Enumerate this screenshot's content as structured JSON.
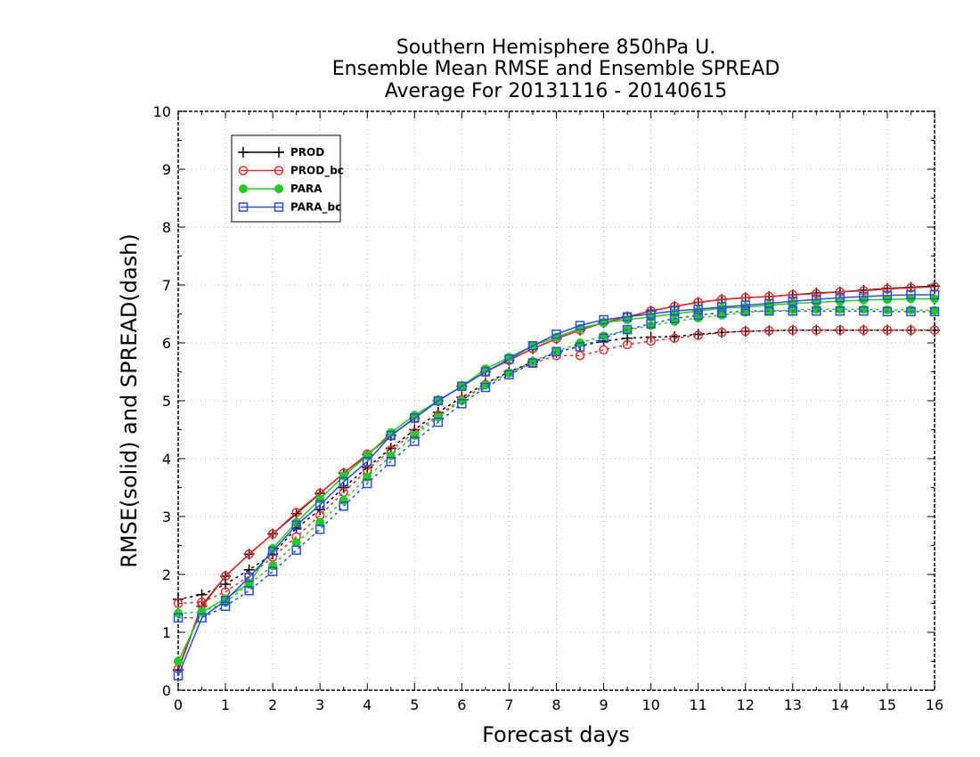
{
  "chart_data": {
    "type": "line",
    "title": "Southern Hemisphere 850hPa U.",
    "subtitle": "Ensemble Mean RMSE and Ensemble SPREAD",
    "subtitle2": "Average For 20131116 - 20140615",
    "xlabel": "Forecast days",
    "ylabel": "RMSE(solid) and SPREAD(dash)",
    "xlim": [
      0,
      16
    ],
    "ylim": [
      0,
      10
    ],
    "xticks": [
      "0",
      "1",
      "2",
      "3",
      "4",
      "5",
      "6",
      "7",
      "8",
      "9",
      "10",
      "11",
      "12",
      "13",
      "14",
      "15",
      "16"
    ],
    "yticks": [
      "0",
      "1",
      "2",
      "3",
      "4",
      "5",
      "6",
      "7",
      "8",
      "9",
      "10"
    ],
    "grid": true,
    "legend_position": "top-left",
    "x": [
      0,
      0.5,
      1,
      1.5,
      2,
      2.5,
      3,
      3.5,
      4,
      4.5,
      5,
      5.5,
      6,
      6.5,
      7,
      7.5,
      8,
      8.5,
      9,
      9.5,
      10,
      10.5,
      11,
      11.5,
      12,
      12.5,
      13,
      13.5,
      14,
      14.5,
      15,
      15.5,
      16
    ],
    "series": [
      {
        "name": "PROD",
        "color": "#000000",
        "marker": "plus",
        "rmse": [
          0.35,
          1.45,
          1.97,
          2.35,
          2.7,
          3.05,
          3.4,
          3.75,
          4.07,
          4.4,
          4.7,
          5.0,
          5.25,
          5.5,
          5.7,
          5.9,
          6.07,
          6.22,
          6.35,
          6.45,
          6.55,
          6.63,
          6.7,
          6.75,
          6.78,
          6.8,
          6.83,
          6.86,
          6.88,
          6.91,
          6.94,
          6.96,
          6.98
        ],
        "spread": [
          1.57,
          1.65,
          1.83,
          2.08,
          2.35,
          2.8,
          3.12,
          3.5,
          3.85,
          4.18,
          4.5,
          4.8,
          5.06,
          5.3,
          5.5,
          5.67,
          5.83,
          5.95,
          6.03,
          6.08,
          6.1,
          6.11,
          6.15,
          6.18,
          6.2,
          6.21,
          6.22,
          6.22,
          6.22,
          6.22,
          6.22,
          6.22,
          6.22
        ]
      },
      {
        "name": "PROD_bc",
        "color": "#e03030",
        "marker": "circle-open",
        "rmse": [
          0.37,
          1.47,
          1.97,
          2.35,
          2.7,
          3.07,
          3.4,
          3.75,
          4.08,
          4.4,
          4.7,
          5.0,
          5.25,
          5.5,
          5.7,
          5.9,
          6.07,
          6.22,
          6.35,
          6.45,
          6.55,
          6.63,
          6.7,
          6.75,
          6.78,
          6.8,
          6.83,
          6.85,
          6.88,
          6.9,
          6.93,
          6.95,
          6.97
        ],
        "spread": [
          1.5,
          1.52,
          1.7,
          1.97,
          2.3,
          2.65,
          3.02,
          3.42,
          3.8,
          4.15,
          4.45,
          4.75,
          5.02,
          5.28,
          5.48,
          5.65,
          5.78,
          5.78,
          5.88,
          5.97,
          6.03,
          6.08,
          6.13,
          6.18,
          6.2,
          6.21,
          6.22,
          6.22,
          6.22,
          6.22,
          6.22,
          6.22,
          6.22
        ]
      },
      {
        "name": "PARA",
        "color": "#22cc22",
        "marker": "circle-filled",
        "rmse": [
          0.5,
          1.35,
          1.58,
          1.85,
          2.45,
          2.9,
          3.3,
          3.7,
          4.05,
          4.45,
          4.75,
          5.0,
          5.25,
          5.55,
          5.75,
          5.95,
          6.1,
          6.25,
          6.35,
          6.4,
          6.45,
          6.5,
          6.55,
          6.6,
          6.62,
          6.65,
          6.68,
          6.7,
          6.72,
          6.74,
          6.75,
          6.76,
          6.76
        ],
        "spread": [
          1.33,
          1.35,
          1.52,
          1.83,
          2.15,
          2.55,
          2.9,
          3.28,
          3.68,
          4.05,
          4.4,
          4.72,
          5.0,
          5.27,
          5.48,
          5.68,
          5.85,
          6.0,
          6.12,
          6.22,
          6.3,
          6.37,
          6.43,
          6.48,
          6.53,
          6.55,
          6.57,
          6.58,
          6.58,
          6.58,
          6.57,
          6.57,
          6.56
        ]
      },
      {
        "name": "PARA_bc",
        "color": "#2a4fd8",
        "marker": "square-open",
        "rmse": [
          0.25,
          1.25,
          1.55,
          1.95,
          2.4,
          2.85,
          3.2,
          3.6,
          3.95,
          4.4,
          4.7,
          5.0,
          5.25,
          5.5,
          5.72,
          5.95,
          6.15,
          6.3,
          6.4,
          6.45,
          6.5,
          6.55,
          6.58,
          6.62,
          6.65,
          6.68,
          6.72,
          6.75,
          6.78,
          6.8,
          6.82,
          6.83,
          6.83
        ],
        "spread": [
          1.25,
          1.25,
          1.45,
          1.72,
          2.05,
          2.42,
          2.78,
          3.18,
          3.57,
          3.95,
          4.3,
          4.63,
          4.95,
          5.23,
          5.45,
          5.65,
          5.85,
          5.93,
          6.08,
          6.23,
          6.33,
          6.42,
          6.48,
          6.52,
          6.55,
          6.55,
          6.55,
          6.55,
          6.55,
          6.55,
          6.54,
          6.54,
          6.54
        ]
      }
    ]
  }
}
